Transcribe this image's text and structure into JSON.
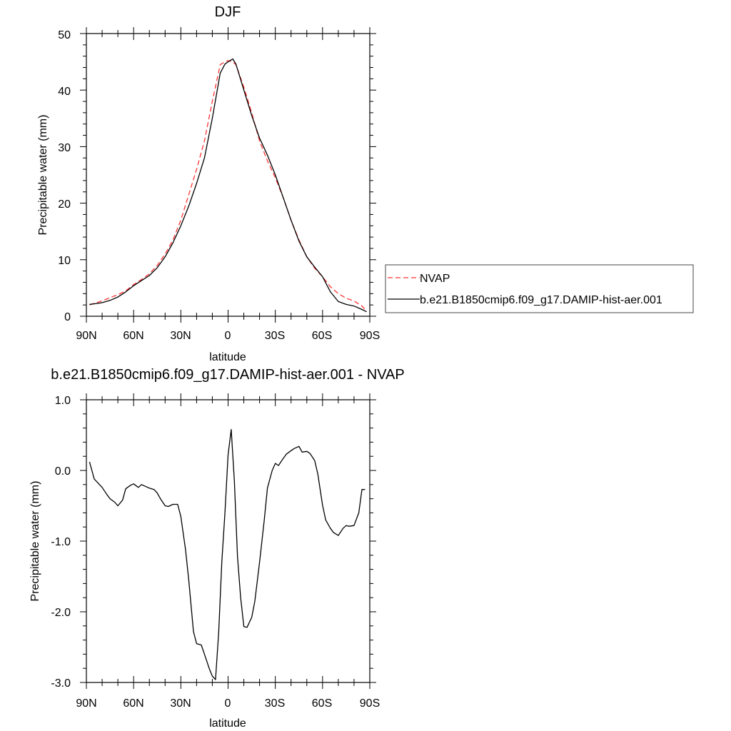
{
  "chart_data": [
    {
      "type": "line",
      "title": "DJF",
      "xlabel": "latitude",
      "ylabel": "Precipitable water (mm)",
      "xlim": [
        90,
        -90
      ],
      "ylim": [
        0,
        50
      ],
      "x_ticks": [
        "90N",
        "60N",
        "30N",
        "0",
        "30S",
        "60S",
        "90S"
      ],
      "y_ticks": [
        "0",
        "10",
        "20",
        "30",
        "40",
        "50"
      ],
      "legend": {
        "placement": "right"
      },
      "series": [
        {
          "name": "NVAP",
          "color": "#ff3333",
          "style": "dashed",
          "x": [
            88,
            85,
            80,
            75,
            70,
            65,
            60,
            55,
            50,
            45,
            40,
            35,
            30,
            25,
            20,
            15,
            10,
            5,
            2,
            0,
            -3,
            -5,
            -10,
            -15,
            -20,
            -25,
            -30,
            -35,
            -40,
            -45,
            -50,
            -55,
            -60,
            -65,
            -70,
            -75,
            -80,
            -85,
            -88
          ],
          "y": [
            2.0,
            2.3,
            2.7,
            3.3,
            3.8,
            4.5,
            5.6,
            6.5,
            7.5,
            9.0,
            11.0,
            13.5,
            17.0,
            21.5,
            26.0,
            31.0,
            38.0,
            44.5,
            45.0,
            45.2,
            45.0,
            44.5,
            40.5,
            36.0,
            31.0,
            27.5,
            24.5,
            21.0,
            17.0,
            13.5,
            10.5,
            8.5,
            7.0,
            5.2,
            4.0,
            3.2,
            2.7,
            1.8,
            0.9
          ]
        },
        {
          "name": "b.e21.B1850cmip6.f09_g17.DAMIP-hist-aer.001",
          "color": "#000000",
          "style": "solid",
          "x": [
            88,
            85,
            80,
            75,
            70,
            65,
            60,
            55,
            50,
            45,
            40,
            35,
            30,
            25,
            20,
            15,
            10,
            5,
            2,
            0,
            -3,
            -5,
            -10,
            -15,
            -20,
            -25,
            -30,
            -35,
            -40,
            -45,
            -50,
            -55,
            -60,
            -65,
            -70,
            -75,
            -80,
            -85,
            -88
          ],
          "y": [
            2.1,
            2.2,
            2.4,
            2.8,
            3.4,
            4.3,
            5.4,
            6.3,
            7.2,
            8.6,
            10.5,
            13.0,
            16.0,
            19.5,
            23.5,
            28.0,
            35.0,
            43.0,
            44.6,
            45.0,
            45.5,
            44.6,
            40.0,
            35.5,
            31.5,
            28.5,
            25.0,
            21.0,
            17.0,
            13.3,
            10.5,
            8.7,
            7.0,
            4.3,
            2.6,
            2.1,
            1.8,
            1.2,
            0.8
          ]
        }
      ]
    },
    {
      "type": "line",
      "title": "b.e21.B1850cmip6.f09_g17.DAMIP-hist-aer.001 - NVAP",
      "xlabel": "latitude",
      "ylabel": "Precipitable water (mm)",
      "xlim": [
        90,
        -90
      ],
      "ylim": [
        -3.0,
        1.0
      ],
      "x_ticks": [
        "90N",
        "60N",
        "30N",
        "0",
        "30S",
        "60S",
        "90S"
      ],
      "y_ticks": [
        "-3.0",
        "-2.0",
        "-1.0",
        "0.0",
        "1.0"
      ],
      "series": [
        {
          "color": "#000000",
          "style": "solid",
          "x": [
            88,
            85,
            80,
            77,
            75,
            72,
            70,
            67,
            65,
            62,
            60,
            57,
            55,
            52,
            50,
            47,
            45,
            43,
            40,
            38,
            35,
            32,
            30,
            27,
            25,
            22,
            20,
            17,
            15,
            12,
            10,
            8,
            6,
            4,
            2,
            0,
            -2,
            -4,
            -6,
            -8,
            -10,
            -12,
            -15,
            -17,
            -20,
            -23,
            -25,
            -28,
            -30,
            -32,
            -35,
            -37,
            -40,
            -42,
            -45,
            -47,
            -50,
            -52,
            -55,
            -57,
            -60,
            -62,
            -65,
            -67,
            -70,
            -73,
            -75,
            -77,
            -80,
            -83,
            -85,
            -87
          ],
          "y": [
            0.12,
            -0.12,
            -0.24,
            -0.34,
            -0.4,
            -0.45,
            -0.5,
            -0.42,
            -0.26,
            -0.21,
            -0.19,
            -0.24,
            -0.2,
            -0.23,
            -0.25,
            -0.27,
            -0.32,
            -0.4,
            -0.5,
            -0.51,
            -0.48,
            -0.48,
            -0.65,
            -1.12,
            -1.55,
            -2.28,
            -2.45,
            -2.47,
            -2.6,
            -2.8,
            -2.91,
            -2.96,
            -2.3,
            -1.3,
            -0.6,
            0.22,
            0.58,
            -0.15,
            -1.22,
            -1.8,
            -2.21,
            -2.22,
            -2.08,
            -1.85,
            -1.3,
            -0.7,
            -0.25,
            0.0,
            0.1,
            0.07,
            0.17,
            0.23,
            0.28,
            0.31,
            0.34,
            0.26,
            0.27,
            0.24,
            0.14,
            -0.05,
            -0.49,
            -0.7,
            -0.82,
            -0.88,
            -0.92,
            -0.82,
            -0.78,
            -0.79,
            -0.78,
            -0.6,
            -0.27,
            -0.27
          ]
        }
      ]
    }
  ]
}
